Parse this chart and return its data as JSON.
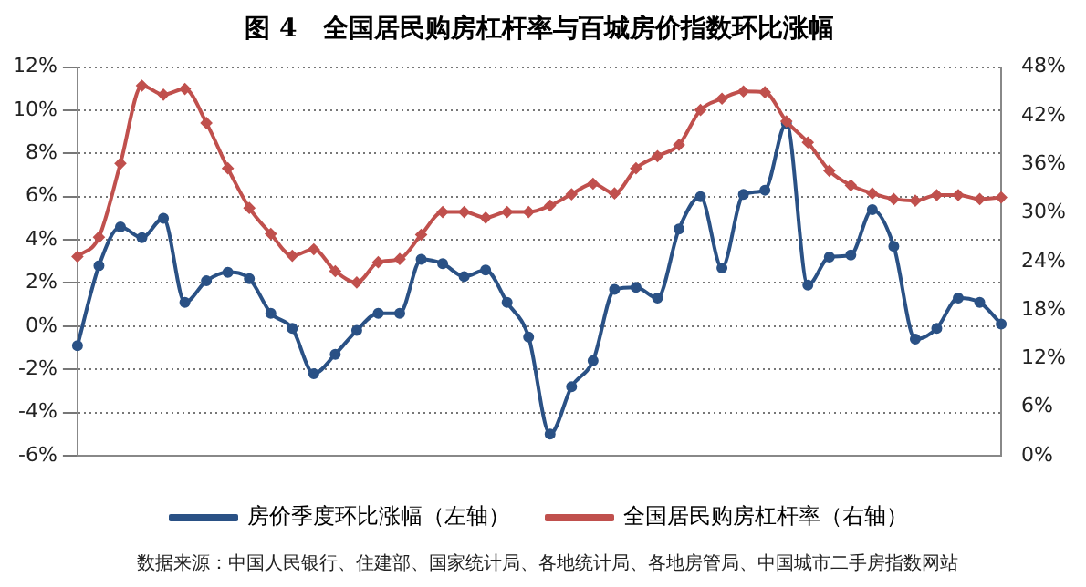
{
  "chart_data": {
    "type": "line",
    "title": "图 4　全国居民购房杠杆率与百城房价指数环比涨幅",
    "categories": [
      null,
      null,
      null,
      null,
      null,
      null,
      null,
      null,
      null,
      null,
      null,
      null,
      null,
      null,
      null,
      null,
      null,
      null,
      null,
      null,
      null,
      null,
      null,
      null,
      null,
      null,
      null,
      null,
      null,
      null,
      null,
      null,
      null,
      null,
      null,
      null,
      null,
      null,
      null,
      null,
      null,
      null,
      null,
      null
    ],
    "series": [
      {
        "name": "房价季度环比涨幅（左轴）",
        "color": "#2a5185",
        "marker": "circle",
        "values": [
          -0.9,
          2.8,
          4.6,
          4.1,
          5.0,
          1.1,
          2.1,
          2.5,
          2.2,
          0.6,
          -0.1,
          -2.2,
          -1.3,
          -0.2,
          0.6,
          0.6,
          3.1,
          2.9,
          2.3,
          2.6,
          1.1,
          -0.5,
          -5.0,
          -2.8,
          -1.6,
          1.7,
          1.8,
          1.3,
          4.5,
          6.0,
          2.7,
          6.1,
          6.3,
          9.4,
          1.9,
          3.2,
          3.3,
          5.4,
          3.7,
          -0.6,
          -0.1,
          1.3,
          1.1,
          0.1
        ]
      },
      {
        "name": "全国居民购房杠杆率（右轴）",
        "color": "#c0504d",
        "marker": "diamond",
        "axis": "y2",
        "values": [
          24.6,
          27.0,
          36.1,
          45.7,
          44.6,
          45.3,
          41.1,
          35.5,
          30.6,
          27.4,
          24.7,
          25.5,
          22.8,
          21.4,
          23.9,
          24.3,
          27.3,
          30.1,
          30.1,
          29.4,
          30.1,
          30.1,
          30.9,
          32.3,
          33.6,
          32.4,
          35.5,
          37.0,
          38.4,
          42.7,
          44.1,
          45.0,
          44.9,
          41.3,
          38.7,
          35.2,
          33.4,
          32.4,
          31.7,
          31.5,
          32.2,
          32.2,
          31.7,
          31.9
        ]
      }
    ],
    "ylim": [
      -6,
      12
    ],
    "yticks": [
      {
        "value": -6,
        "label": "-6%"
      },
      {
        "value": -4,
        "label": "-4%"
      },
      {
        "value": -2,
        "label": "-2%"
      },
      {
        "value": 0,
        "label": "0%"
      },
      {
        "value": 2,
        "label": "2%"
      },
      {
        "value": 4,
        "label": "4%"
      },
      {
        "value": 6,
        "label": "6%"
      },
      {
        "value": 8,
        "label": "8%"
      },
      {
        "value": 10,
        "label": "10%"
      },
      {
        "value": 12,
        "label": "12%"
      }
    ],
    "y2lim": [
      0,
      48
    ],
    "y2ticks": [
      {
        "value": 0,
        "label": "0%"
      },
      {
        "value": 6,
        "label": "6%"
      },
      {
        "value": 12,
        "label": "12%"
      },
      {
        "value": 18,
        "label": "18%"
      },
      {
        "value": 24,
        "label": "24%"
      },
      {
        "value": 30,
        "label": "30%"
      },
      {
        "value": 36,
        "label": "36%"
      },
      {
        "value": 42,
        "label": "42%"
      },
      {
        "value": 48,
        "label": "48%"
      }
    ],
    "grid": "y",
    "legend": "bottom",
    "tick_labels": "y",
    "annotations": [
      "数据来源：中国人民银行、住建部、国家统计局、各地统计局、各地房管局、中国城市二手房指数网站"
    ]
  }
}
